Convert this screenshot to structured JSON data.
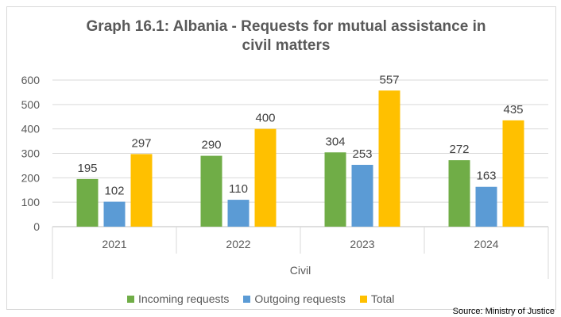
{
  "chart_data": {
    "type": "bar",
    "title_lines": [
      "Graph 16.1: Albania - Requests for mutual assistance in",
      "civil matters"
    ],
    "categories": [
      "2021",
      "2022",
      "2023",
      "2024"
    ],
    "group_label": "Civil",
    "series": [
      {
        "name": "Incoming requests",
        "color": "#70ad47",
        "values": [
          195,
          290,
          304,
          272
        ]
      },
      {
        "name": "Outgoing requests",
        "color": "#5b9bd5",
        "values": [
          102,
          110,
          253,
          163
        ]
      },
      {
        "name": "Total",
        "color": "#ffc000",
        "values": [
          297,
          400,
          557,
          435
        ]
      }
    ],
    "ylim": [
      0,
      600
    ],
    "yticks": [
      0,
      100,
      200,
      300,
      400,
      500,
      600
    ],
    "grid": true,
    "legend_position": "bottom"
  },
  "source": "Source: Ministry of Justice"
}
